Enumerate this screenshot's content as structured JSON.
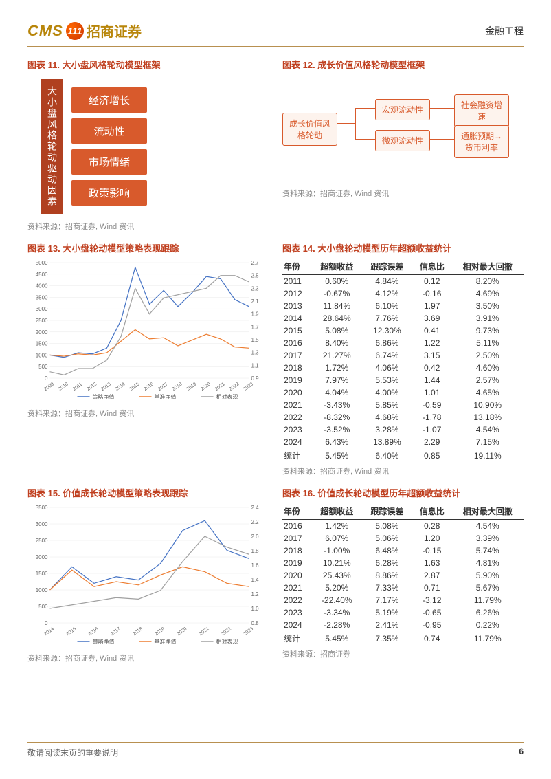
{
  "header": {
    "logo_cms": "CMS",
    "logo_num": "111",
    "logo_cn": "招商证券",
    "right": "金融工程"
  },
  "fig11": {
    "title": "图表 11. 大小盘风格轮动模型框架",
    "vertical": "大小盘风格轮动驱动因素",
    "factors": [
      "经济增长",
      "流动性",
      "市场情绪",
      "政策影响"
    ],
    "source": "资料来源：招商证券, Wind 资讯"
  },
  "fig12": {
    "title": "图表 12. 成长价值风格轮动模型框架",
    "root": "成长价值风格轮动",
    "mid1": "宏观流动性",
    "mid2": "微观流动性",
    "leaf1": "社会融资增速",
    "leaf2": "通胀预期→货币利率",
    "source": "资料来源：招商证券, Wind 资讯"
  },
  "fig13": {
    "title": "图表 13. 大小盘轮动模型策略表现跟踪",
    "source": "资料来源：招商证券, Wind 资讯",
    "chart": {
      "type": "line",
      "x_labels": [
        "2009",
        "2010",
        "2011",
        "2012",
        "2013",
        "2014",
        "2015",
        "2016",
        "2017",
        "2018",
        "2019",
        "2020",
        "2021",
        "2022",
        "2023"
      ],
      "left_ylim": [
        0,
        5000
      ],
      "left_ticks": [
        0,
        500,
        1000,
        1500,
        2000,
        2500,
        3000,
        3500,
        4000,
        4500,
        5000
      ],
      "right_ylim": [
        0.9,
        2.7
      ],
      "right_ticks": [
        0.9,
        1.1,
        1.3,
        1.5,
        1.7,
        1.9,
        2.1,
        2.3,
        2.5,
        2.7
      ],
      "legend": [
        "策略净值",
        "基准净值",
        "相对表现"
      ],
      "colors": [
        "#4472c4",
        "#ed7d31",
        "#a0a0a0"
      ],
      "series": {
        "strategy": [
          1000,
          900,
          1100,
          1050,
          1300,
          2500,
          4800,
          3200,
          3800,
          3100,
          3700,
          4400,
          4300,
          3400,
          3100
        ],
        "benchmark": [
          1000,
          950,
          1050,
          1000,
          1100,
          1600,
          2100,
          1700,
          1750,
          1400,
          1650,
          1900,
          1700,
          1350,
          1300
        ],
        "relative": [
          1.0,
          0.95,
          1.05,
          1.05,
          1.18,
          1.55,
          2.3,
          1.9,
          2.15,
          2.2,
          2.25,
          2.3,
          2.5,
          2.5,
          2.4
        ]
      },
      "background_color": "#ffffff",
      "grid_color": "#e8e8e8"
    }
  },
  "fig14": {
    "title": "图表 14. 大小盘轮动模型历年超额收益统计",
    "columns": [
      "年份",
      "超额收益",
      "跟踪误差",
      "信息比",
      "相对最大回撤"
    ],
    "rows": [
      [
        "2011",
        "0.60%",
        "4.84%",
        "0.12",
        "8.20%"
      ],
      [
        "2012",
        "-0.67%",
        "4.12%",
        "-0.16",
        "4.69%"
      ],
      [
        "2013",
        "11.84%",
        "6.10%",
        "1.97",
        "3.50%"
      ],
      [
        "2014",
        "28.64%",
        "7.76%",
        "3.69",
        "3.91%"
      ],
      [
        "2015",
        "5.08%",
        "12.30%",
        "0.41",
        "9.73%"
      ],
      [
        "2016",
        "8.40%",
        "6.86%",
        "1.22",
        "5.11%"
      ],
      [
        "2017",
        "21.27%",
        "6.74%",
        "3.15",
        "2.50%"
      ],
      [
        "2018",
        "1.72%",
        "4.06%",
        "0.42",
        "4.60%"
      ],
      [
        "2019",
        "7.97%",
        "5.53%",
        "1.44",
        "2.57%"
      ],
      [
        "2020",
        "4.04%",
        "4.00%",
        "1.01",
        "4.65%"
      ],
      [
        "2021",
        "-3.43%",
        "5.85%",
        "-0.59",
        "10.90%"
      ],
      [
        "2022",
        "-8.32%",
        "4.68%",
        "-1.78",
        "13.18%"
      ],
      [
        "2023",
        "-3.52%",
        "3.28%",
        "-1.07",
        "4.54%"
      ],
      [
        "2024",
        "6.43%",
        "13.89%",
        "2.29",
        "7.15%"
      ],
      [
        "统计",
        "5.45%",
        "6.40%",
        "0.85",
        "19.11%"
      ]
    ],
    "source": "资料来源：招商证券, Wind 资讯"
  },
  "fig15": {
    "title": "图表 15. 价值成长轮动模型策略表现跟踪",
    "source": "资料来源：招商证券, Wind 资讯",
    "chart": {
      "type": "line",
      "x_labels": [
        "2014",
        "2015",
        "2016",
        "2017",
        "2018",
        "2019",
        "2020",
        "2021",
        "2022",
        "2023"
      ],
      "left_ylim": [
        0,
        3500
      ],
      "left_ticks": [
        0,
        500,
        1000,
        1500,
        2000,
        2500,
        3000,
        3500
      ],
      "right_ylim": [
        0.8,
        2.4
      ],
      "right_ticks": [
        0.8,
        1.0,
        1.2,
        1.4,
        1.6,
        1.8,
        2.0,
        2.2,
        2.4
      ],
      "legend": [
        "策略净值",
        "基准净值",
        "相对表现"
      ],
      "colors": [
        "#4472c4",
        "#ed7d31",
        "#a0a0a0"
      ],
      "series": {
        "strategy": [
          1000,
          1700,
          1200,
          1400,
          1300,
          1800,
          2800,
          3100,
          2200,
          1950
        ],
        "benchmark": [
          1000,
          1600,
          1100,
          1250,
          1150,
          1450,
          1700,
          1550,
          1200,
          1100
        ],
        "relative": [
          1.0,
          1.05,
          1.1,
          1.15,
          1.13,
          1.25,
          1.65,
          2.0,
          1.85,
          1.75
        ]
      },
      "background_color": "#ffffff",
      "grid_color": "#e8e8e8"
    }
  },
  "fig16": {
    "title": "图表 16. 价值成长轮动模型历年超额收益统计",
    "columns": [
      "年份",
      "超额收益",
      "跟踪误差",
      "信息比",
      "相对最大回撤"
    ],
    "rows": [
      [
        "2016",
        "1.42%",
        "5.08%",
        "0.28",
        "4.54%"
      ],
      [
        "2017",
        "6.07%",
        "5.06%",
        "1.20",
        "3.39%"
      ],
      [
        "2018",
        "-1.00%",
        "6.48%",
        "-0.15",
        "5.74%"
      ],
      [
        "2019",
        "10.21%",
        "6.28%",
        "1.63",
        "4.81%"
      ],
      [
        "2020",
        "25.43%",
        "8.86%",
        "2.87",
        "5.90%"
      ],
      [
        "2021",
        "5.20%",
        "7.33%",
        "0.71",
        "5.67%"
      ],
      [
        "2022",
        "-22.40%",
        "7.17%",
        "-3.12",
        "11.79%"
      ],
      [
        "2023",
        "-3.34%",
        "5.19%",
        "-0.65",
        "6.26%"
      ],
      [
        "2024",
        "-2.28%",
        "2.41%",
        "-0.95",
        "0.22%"
      ],
      [
        "统计",
        "5.45%",
        "7.35%",
        "0.74",
        "11.79%"
      ]
    ],
    "source": "资料来源：招商证券"
  },
  "footer": {
    "left": "敬请阅读末页的重要说明",
    "page": "6"
  }
}
